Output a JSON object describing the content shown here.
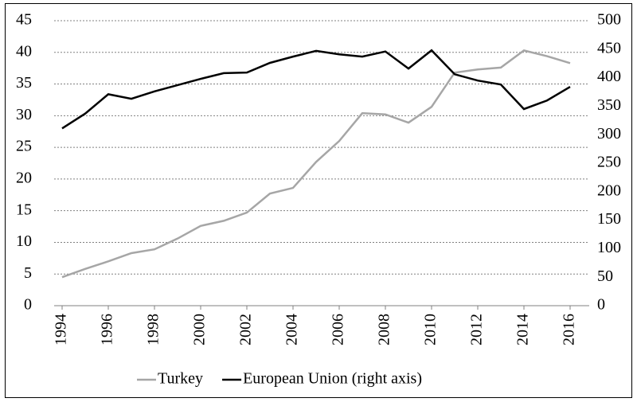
{
  "chart_data": {
    "type": "line",
    "x": [
      1994,
      1995,
      1996,
      1997,
      1998,
      1999,
      2000,
      2001,
      2002,
      2003,
      2004,
      2005,
      2006,
      2007,
      2008,
      2009,
      2010,
      2011,
      2012,
      2013,
      2014,
      2015,
      2016
    ],
    "xlim": [
      1994,
      2016
    ],
    "xticks": [
      1994,
      1996,
      1998,
      2000,
      2002,
      2004,
      2006,
      2008,
      2010,
      2012,
      2014,
      2016
    ],
    "ylim": [
      0,
      45
    ],
    "yticks": [
      0,
      5,
      10,
      15,
      20,
      25,
      30,
      35,
      40,
      45
    ],
    "y2lim": [
      0,
      500
    ],
    "y2ticks": [
      0,
      50,
      100,
      150,
      200,
      250,
      300,
      350,
      400,
      450,
      500
    ],
    "grid": true,
    "legend": "bottom",
    "series": [
      {
        "name": "Turkey",
        "color": "#a6a6a6",
        "values": [
          4.5,
          5.8,
          7.0,
          8.3,
          8.9,
          10.6,
          12.6,
          13.4,
          14.7,
          17.7,
          18.6,
          22.7,
          26.0,
          30.4,
          30.2,
          28.9,
          31.4,
          36.8,
          37.3,
          37.6,
          40.3,
          39.4,
          38.3
        ]
      },
      {
        "name": "European Union (right axis)",
        "color": "#000000",
        "axis": "y2",
        "values": [
          311,
          337,
          371,
          363,
          376,
          387,
          398,
          408,
          409,
          426,
          437,
          447,
          441,
          437,
          446,
          416,
          448,
          406,
          395,
          388,
          345,
          360,
          384
        ]
      }
    ]
  }
}
